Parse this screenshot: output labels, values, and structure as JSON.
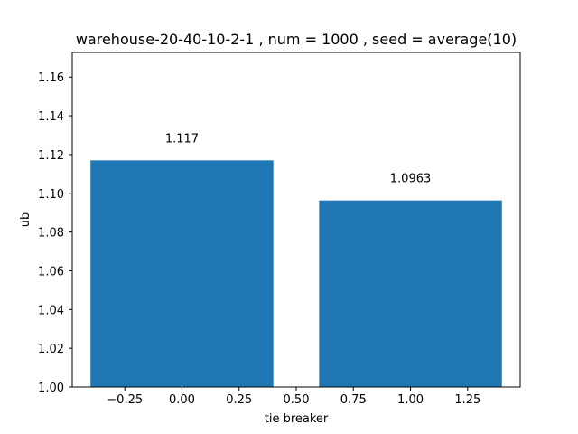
{
  "chart_data": {
    "type": "bar",
    "title": "warehouse-20-40-10-2-1 , num = 1000 , seed = average(10)",
    "xlabel": "tie breaker",
    "ylabel": "ub",
    "x": [
      0,
      1
    ],
    "values": [
      1.117,
      1.0963
    ],
    "data_labels": [
      "1.117",
      "1.0963"
    ],
    "bar_width": 0.8,
    "bar_color": "#1f77b4",
    "xlim": [
      -0.48,
      1.48
    ],
    "ylim": [
      1.0,
      1.1727
    ],
    "xticks": [
      -0.25,
      0.0,
      0.25,
      0.5,
      0.75,
      1.0,
      1.25
    ],
    "xtick_labels": [
      "−0.25",
      "0.00",
      "0.25",
      "0.50",
      "0.75",
      "1.00",
      "1.25"
    ],
    "yticks": [
      1.0,
      1.02,
      1.04,
      1.06,
      1.08,
      1.1,
      1.12,
      1.14,
      1.16
    ],
    "ytick_labels": [
      "1.00",
      "1.02",
      "1.04",
      "1.06",
      "1.08",
      "1.10",
      "1.12",
      "1.14",
      "1.16"
    ],
    "grid": false,
    "legend": "none"
  }
}
